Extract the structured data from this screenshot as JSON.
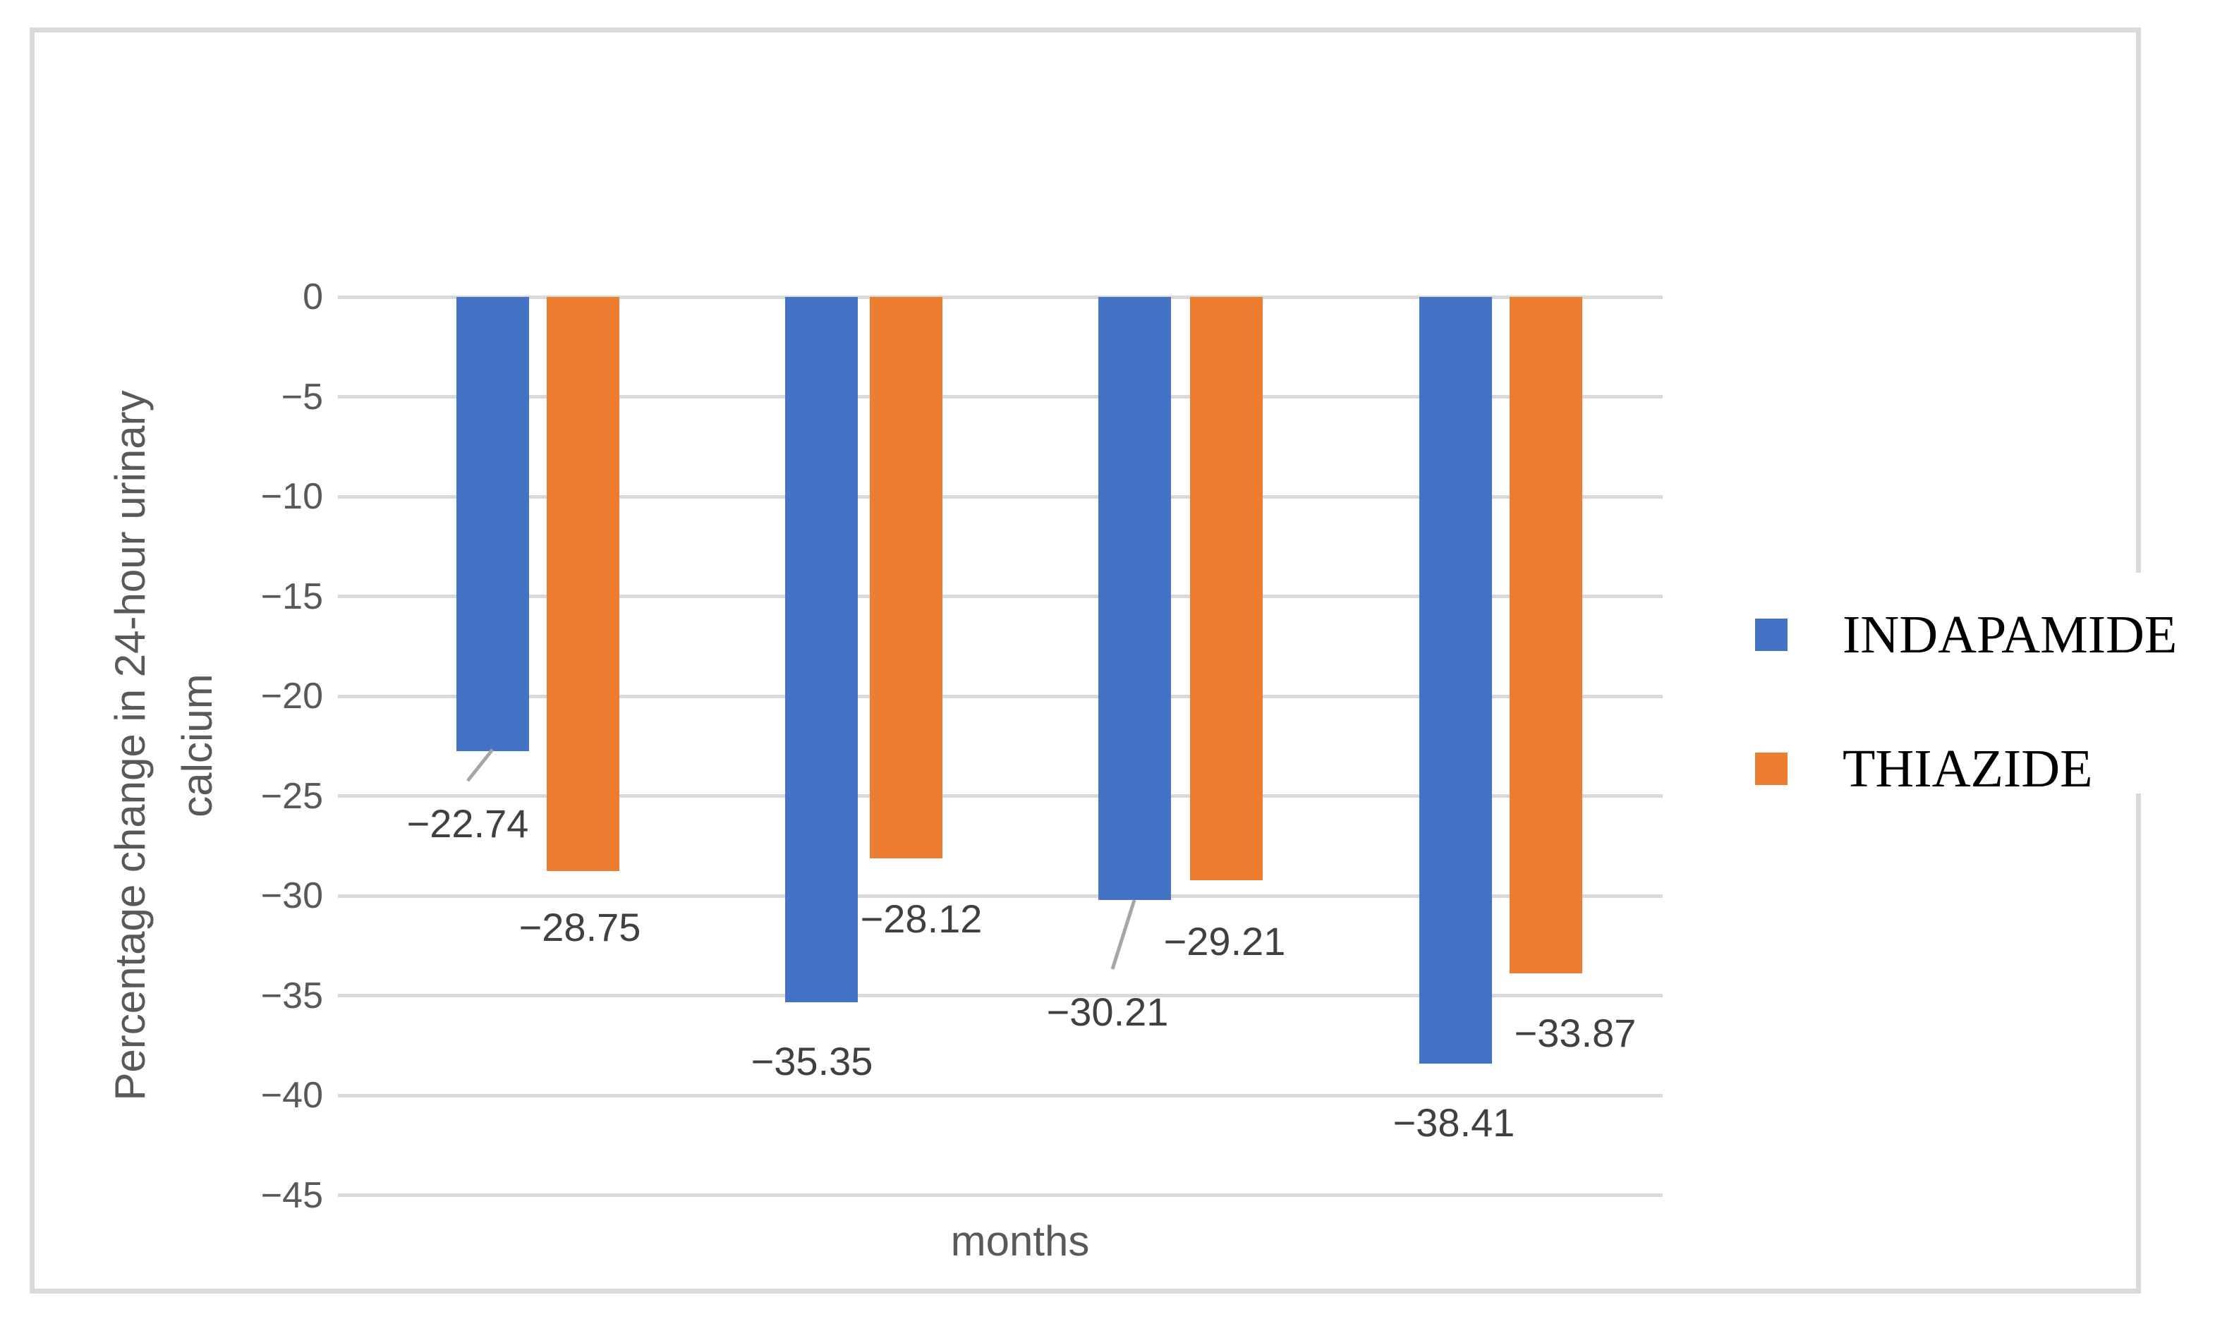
{
  "figure": {
    "background": "#ffffff",
    "frame_color": "#d9d9d9"
  },
  "chart_data": {
    "type": "bar",
    "grouped": true,
    "categories": [
      "",
      "",
      "",
      ""
    ],
    "series": [
      {
        "name": "INDAPAMIDE",
        "color": "#4472C4",
        "values": [
          -22.74,
          -35.35,
          -30.21,
          -38.41
        ],
        "labels": [
          "−22.74",
          "−35.35",
          "−30.21",
          "−38.41"
        ]
      },
      {
        "name": "THIAZIDE",
        "color": "#ED7D31",
        "values": [
          -28.75,
          -28.12,
          -29.21,
          -33.87
        ],
        "labels": [
          "−28.75",
          "−28.12",
          "−29.21",
          "−33.87"
        ]
      }
    ],
    "title": "",
    "xlabel": "months",
    "ylabel": "Percentage change in 24-hour urinary calcium",
    "ylim": [
      -45,
      0
    ],
    "ytick_step": 5,
    "grid": true,
    "legend_position": "right"
  },
  "axes": {
    "y_title_line1": "Percentage change in 24-hour urinary",
    "y_title_line2": "calcium",
    "x_title": "months",
    "y_tick_labels": [
      "0",
      "−5",
      "−10",
      "−15",
      "−20",
      "−25",
      "−30",
      "−35",
      "−40",
      "−45"
    ],
    "tick_color": "#595959",
    "grid_color": "#d9d9d9",
    "data_label_color": "#404040",
    "leader_line_color": "#a6a6a6"
  },
  "legend": {
    "entries": [
      {
        "label": "INDAPAMIDE",
        "color": "#4472C4"
      },
      {
        "label": "THIAZIDE",
        "color": "#ED7D31"
      }
    ]
  }
}
